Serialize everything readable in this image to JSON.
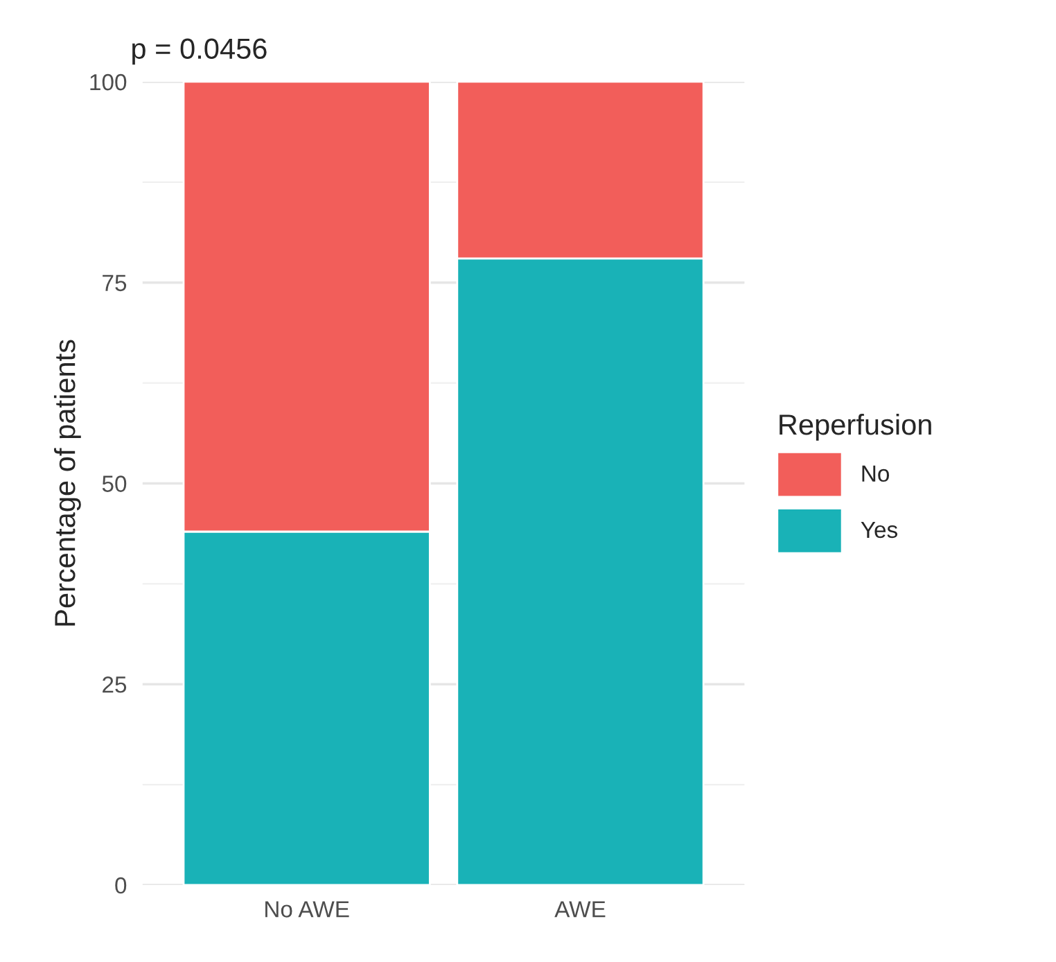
{
  "chart_data": {
    "type": "bar",
    "title": "p = 0.0456",
    "ylabel": "Percentage of patients",
    "legend_title": "Reperfusion",
    "categories": [
      "No AWE",
      "AWE"
    ],
    "stacked": true,
    "series": [
      {
        "name": "Yes",
        "color": "#19b2b7",
        "values": [
          44,
          78
        ]
      },
      {
        "name": "No",
        "color": "#f25e5a",
        "values": [
          56,
          22
        ]
      }
    ],
    "ylim": [
      0,
      100
    ],
    "yticks": [
      0,
      25,
      50,
      75,
      100
    ],
    "grid": "y",
    "legend": "right"
  }
}
